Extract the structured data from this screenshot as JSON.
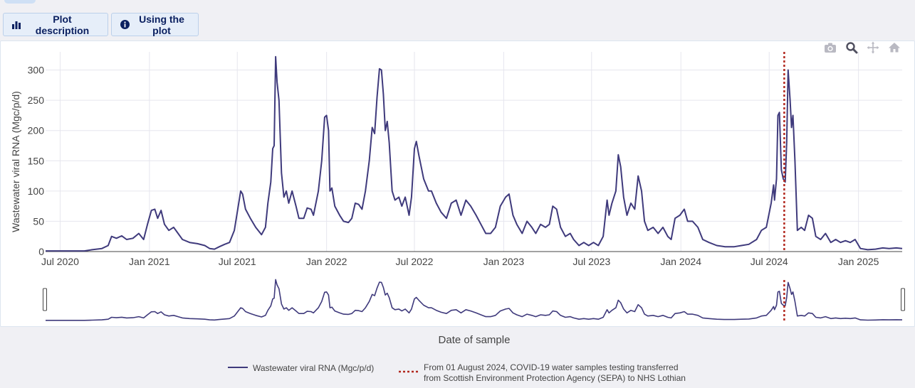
{
  "buttons": {
    "plot_description": "Plot description",
    "using_the_plot": "Using the plot"
  },
  "modebar": [
    "camera-icon",
    "zoom-icon",
    "pan-icon",
    "home-icon"
  ],
  "colors": {
    "series": "#3f3a7c",
    "marker_line": "#b2281f",
    "button_text": "#0b2060",
    "button_bg": "#e6eef9"
  },
  "chart_data": {
    "type": "line",
    "title": "",
    "xlabel": "Date of sample",
    "ylabel": "Wastewater viral RNA (Mgc/p/d)",
    "ylim": [
      0,
      330
    ],
    "yticks": [
      0,
      50,
      100,
      150,
      200,
      250,
      300
    ],
    "xlim": [
      "2020-06-01",
      "2025-04-01"
    ],
    "xticks": [
      {
        "date": "2020-07-01",
        "label": "Jul 2020"
      },
      {
        "date": "2021-01-01",
        "label": "Jan 2021"
      },
      {
        "date": "2021-07-01",
        "label": "Jul 2021"
      },
      {
        "date": "2022-01-01",
        "label": "Jan 2022"
      },
      {
        "date": "2022-07-01",
        "label": "Jul 2022"
      },
      {
        "date": "2023-01-01",
        "label": "Jan 2023"
      },
      {
        "date": "2023-07-01",
        "label": "Jul 2023"
      },
      {
        "date": "2024-01-01",
        "label": "Jan 2024"
      },
      {
        "date": "2024-07-01",
        "label": "Jul 2024"
      },
      {
        "date": "2025-01-01",
        "label": "Jan 2025"
      }
    ],
    "grid": true,
    "legend_position": "bottom",
    "series": [
      {
        "name": "Wastewater viral RNA (Mgc/p/d)",
        "points": [
          [
            "2020-06-01",
            1
          ],
          [
            "2020-08-20",
            1
          ],
          [
            "2020-09-05",
            3
          ],
          [
            "2020-09-25",
            5
          ],
          [
            "2020-10-08",
            10
          ],
          [
            "2020-10-15",
            25
          ],
          [
            "2020-10-25",
            22
          ],
          [
            "2020-11-05",
            26
          ],
          [
            "2020-11-15",
            20
          ],
          [
            "2020-11-28",
            22
          ],
          [
            "2020-12-10",
            30
          ],
          [
            "2020-12-20",
            20
          ],
          [
            "2020-12-28",
            45
          ],
          [
            "2021-01-05",
            68
          ],
          [
            "2021-01-12",
            70
          ],
          [
            "2021-01-18",
            55
          ],
          [
            "2021-01-25",
            68
          ],
          [
            "2021-02-01",
            45
          ],
          [
            "2021-02-10",
            35
          ],
          [
            "2021-02-20",
            40
          ],
          [
            "2021-03-01",
            30
          ],
          [
            "2021-03-10",
            20
          ],
          [
            "2021-03-25",
            15
          ],
          [
            "2021-04-10",
            13
          ],
          [
            "2021-04-25",
            10
          ],
          [
            "2021-05-05",
            5
          ],
          [
            "2021-05-15",
            4
          ],
          [
            "2021-05-25",
            8
          ],
          [
            "2021-06-05",
            12
          ],
          [
            "2021-06-15",
            15
          ],
          [
            "2021-06-25",
            35
          ],
          [
            "2021-07-02",
            70
          ],
          [
            "2021-07-08",
            100
          ],
          [
            "2021-07-12",
            95
          ],
          [
            "2021-07-18",
            70
          ],
          [
            "2021-07-28",
            55
          ],
          [
            "2021-08-08",
            40
          ],
          [
            "2021-08-20",
            28
          ],
          [
            "2021-08-28",
            40
          ],
          [
            "2021-09-02",
            80
          ],
          [
            "2021-09-08",
            115
          ],
          [
            "2021-09-12",
            170
          ],
          [
            "2021-09-15",
            175
          ],
          [
            "2021-09-18",
            322
          ],
          [
            "2021-09-21",
            280
          ],
          [
            "2021-09-25",
            250
          ],
          [
            "2021-09-30",
            130
          ],
          [
            "2021-10-05",
            90
          ],
          [
            "2021-10-10",
            100
          ],
          [
            "2021-10-15",
            80
          ],
          [
            "2021-10-22",
            100
          ],
          [
            "2021-10-30",
            75
          ],
          [
            "2021-11-05",
            55
          ],
          [
            "2021-11-15",
            55
          ],
          [
            "2021-11-22",
            72
          ],
          [
            "2021-11-30",
            70
          ],
          [
            "2021-12-05",
            60
          ],
          [
            "2021-12-15",
            100
          ],
          [
            "2021-12-22",
            150
          ],
          [
            "2021-12-28",
            222
          ],
          [
            "2022-01-01",
            225
          ],
          [
            "2022-01-05",
            200
          ],
          [
            "2022-01-08",
            100
          ],
          [
            "2022-01-12",
            105
          ],
          [
            "2022-01-18",
            75
          ],
          [
            "2022-01-28",
            60
          ],
          [
            "2022-02-05",
            50
          ],
          [
            "2022-02-15",
            48
          ],
          [
            "2022-02-22",
            55
          ],
          [
            "2022-03-01",
            80
          ],
          [
            "2022-03-08",
            78
          ],
          [
            "2022-03-15",
            70
          ],
          [
            "2022-03-22",
            100
          ],
          [
            "2022-03-30",
            150
          ],
          [
            "2022-04-05",
            205
          ],
          [
            "2022-04-10",
            195
          ],
          [
            "2022-04-15",
            255
          ],
          [
            "2022-04-20",
            302
          ],
          [
            "2022-04-24",
            300
          ],
          [
            "2022-04-28",
            260
          ],
          [
            "2022-05-02",
            200
          ],
          [
            "2022-05-06",
            215
          ],
          [
            "2022-05-10",
            180
          ],
          [
            "2022-05-16",
            100
          ],
          [
            "2022-05-22",
            85
          ],
          [
            "2022-05-30",
            90
          ],
          [
            "2022-06-05",
            75
          ],
          [
            "2022-06-12",
            90
          ],
          [
            "2022-06-20",
            60
          ],
          [
            "2022-06-25",
            90
          ],
          [
            "2022-07-01",
            170
          ],
          [
            "2022-07-05",
            182
          ],
          [
            "2022-07-10",
            160
          ],
          [
            "2022-07-20",
            120
          ],
          [
            "2022-07-30",
            100
          ],
          [
            "2022-08-05",
            100
          ],
          [
            "2022-08-15",
            80
          ],
          [
            "2022-08-25",
            65
          ],
          [
            "2022-09-05",
            55
          ],
          [
            "2022-09-15",
            80
          ],
          [
            "2022-09-25",
            85
          ],
          [
            "2022-10-05",
            60
          ],
          [
            "2022-10-15",
            85
          ],
          [
            "2022-10-25",
            75
          ],
          [
            "2022-11-05",
            60
          ],
          [
            "2022-11-15",
            45
          ],
          [
            "2022-11-25",
            30
          ],
          [
            "2022-12-05",
            30
          ],
          [
            "2022-12-15",
            40
          ],
          [
            "2022-12-25",
            75
          ],
          [
            "2023-01-05",
            90
          ],
          [
            "2023-01-12",
            95
          ],
          [
            "2023-01-20",
            60
          ],
          [
            "2023-01-28",
            45
          ],
          [
            "2023-02-08",
            30
          ],
          [
            "2023-02-18",
            50
          ],
          [
            "2023-02-28",
            40
          ],
          [
            "2023-03-08",
            30
          ],
          [
            "2023-03-18",
            45
          ],
          [
            "2023-03-28",
            40
          ],
          [
            "2023-04-05",
            45
          ],
          [
            "2023-04-12",
            75
          ],
          [
            "2023-04-20",
            70
          ],
          [
            "2023-04-28",
            40
          ],
          [
            "2023-05-08",
            25
          ],
          [
            "2023-05-18",
            30
          ],
          [
            "2023-05-25",
            20
          ],
          [
            "2023-06-05",
            10
          ],
          [
            "2023-06-15",
            15
          ],
          [
            "2023-06-25",
            10
          ],
          [
            "2023-07-05",
            15
          ],
          [
            "2023-07-15",
            10
          ],
          [
            "2023-07-25",
            25
          ],
          [
            "2023-08-02",
            85
          ],
          [
            "2023-08-06",
            60
          ],
          [
            "2023-08-12",
            80
          ],
          [
            "2023-08-20",
            100
          ],
          [
            "2023-08-25",
            160
          ],
          [
            "2023-08-30",
            140
          ],
          [
            "2023-09-05",
            90
          ],
          [
            "2023-09-12",
            60
          ],
          [
            "2023-09-20",
            80
          ],
          [
            "2023-09-28",
            70
          ],
          [
            "2023-10-05",
            125
          ],
          [
            "2023-10-12",
            100
          ],
          [
            "2023-10-18",
            50
          ],
          [
            "2023-10-25",
            35
          ],
          [
            "2023-11-05",
            40
          ],
          [
            "2023-11-15",
            30
          ],
          [
            "2023-11-25",
            40
          ],
          [
            "2023-12-05",
            25
          ],
          [
            "2023-12-12",
            20
          ],
          [
            "2023-12-20",
            55
          ],
          [
            "2023-12-30",
            60
          ],
          [
            "2024-01-08",
            70
          ],
          [
            "2024-01-15",
            50
          ],
          [
            "2024-01-25",
            50
          ],
          [
            "2024-02-05",
            40
          ],
          [
            "2024-02-15",
            20
          ],
          [
            "2024-02-28",
            15
          ],
          [
            "2024-03-15",
            10
          ],
          [
            "2024-04-01",
            8
          ],
          [
            "2024-04-20",
            8
          ],
          [
            "2024-05-05",
            10
          ],
          [
            "2024-05-20",
            12
          ],
          [
            "2024-06-05",
            20
          ],
          [
            "2024-06-15",
            35
          ],
          [
            "2024-06-25",
            40
          ],
          [
            "2024-07-05",
            80
          ],
          [
            "2024-07-10",
            110
          ],
          [
            "2024-07-12",
            85
          ],
          [
            "2024-07-16",
            120
          ],
          [
            "2024-07-19",
            225
          ],
          [
            "2024-07-22",
            230
          ],
          [
            "2024-07-26",
            135
          ],
          [
            "2024-07-30",
            120
          ],
          [
            "2024-08-03",
            115
          ],
          [
            "2024-08-06",
            180
          ],
          [
            "2024-08-09",
            300
          ],
          [
            "2024-08-13",
            250
          ],
          [
            "2024-08-16",
            205
          ],
          [
            "2024-08-19",
            225
          ],
          [
            "2024-08-23",
            150
          ],
          [
            "2024-08-28",
            35
          ],
          [
            "2024-09-05",
            40
          ],
          [
            "2024-09-12",
            35
          ],
          [
            "2024-09-20",
            60
          ],
          [
            "2024-09-28",
            55
          ],
          [
            "2024-10-05",
            25
          ],
          [
            "2024-10-15",
            20
          ],
          [
            "2024-10-25",
            30
          ],
          [
            "2024-11-05",
            15
          ],
          [
            "2024-11-15",
            20
          ],
          [
            "2024-11-25",
            15
          ],
          [
            "2024-12-05",
            18
          ],
          [
            "2024-12-15",
            15
          ],
          [
            "2024-12-25",
            20
          ],
          [
            "2025-01-05",
            5
          ],
          [
            "2025-01-20",
            3
          ],
          [
            "2025-02-05",
            4
          ],
          [
            "2025-02-20",
            6
          ],
          [
            "2025-03-05",
            5
          ],
          [
            "2025-03-20",
            6
          ],
          [
            "2025-04-01",
            5
          ]
        ]
      }
    ],
    "annotations": [
      {
        "type": "vertical-line",
        "date": "2024-08-01",
        "style": "dotted",
        "text": "From 01 August 2024, COVID-19 water samples testing transferred from Scottish Environment Protection Agency (SEPA) to NHS Lothian",
        "text_lines": [
          "From 01 August 2024, COVID-19 water samples testing transferred",
          "from Scottish Environment Protection Agency (SEPA) to NHS Lothian"
        ]
      }
    ]
  }
}
